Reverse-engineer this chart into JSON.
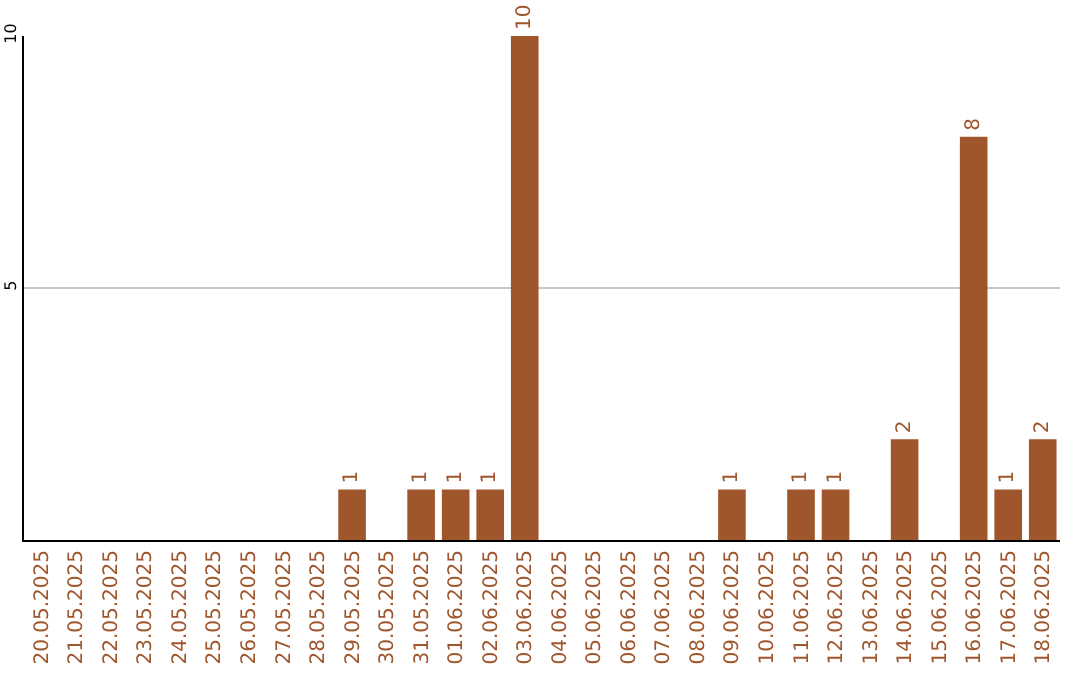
{
  "chart_data": {
    "type": "bar",
    "categories": [
      "20.05.2025",
      "21.05.2025",
      "22.05.2025",
      "23.05.2025",
      "24.05.2025",
      "25.05.2025",
      "26.05.2025",
      "27.05.2025",
      "28.05.2025",
      "29.05.2025",
      "30.05.2025",
      "31.05.2025",
      "01.06.2025",
      "02.06.2025",
      "03.06.2025",
      "04.06.2025",
      "05.06.2025",
      "06.06.2025",
      "07.06.2025",
      "08.06.2025",
      "09.06.2025",
      "10.06.2025",
      "11.06.2025",
      "12.06.2025",
      "13.06.2025",
      "14.06.2025",
      "15.06.2025",
      "16.06.2025",
      "17.06.2025",
      "18.06.2025"
    ],
    "values": [
      0,
      0,
      0,
      0,
      0,
      0,
      0,
      0,
      0,
      1,
      0,
      1,
      1,
      1,
      10,
      0,
      0,
      0,
      0,
      0,
      1,
      0,
      1,
      1,
      0,
      2,
      0,
      8,
      1,
      2
    ],
    "value_labels": [
      null,
      null,
      null,
      null,
      null,
      null,
      null,
      null,
      null,
      "1",
      null,
      "1",
      "1",
      "1",
      "10",
      null,
      null,
      null,
      null,
      null,
      "1",
      null,
      "1",
      "1",
      null,
      "2",
      null,
      "8",
      "1",
      "2"
    ],
    "color": "#a0562c",
    "ylim": [
      0,
      10
    ],
    "yticks": [
      5,
      10
    ],
    "grid": "y",
    "legend": false
  }
}
